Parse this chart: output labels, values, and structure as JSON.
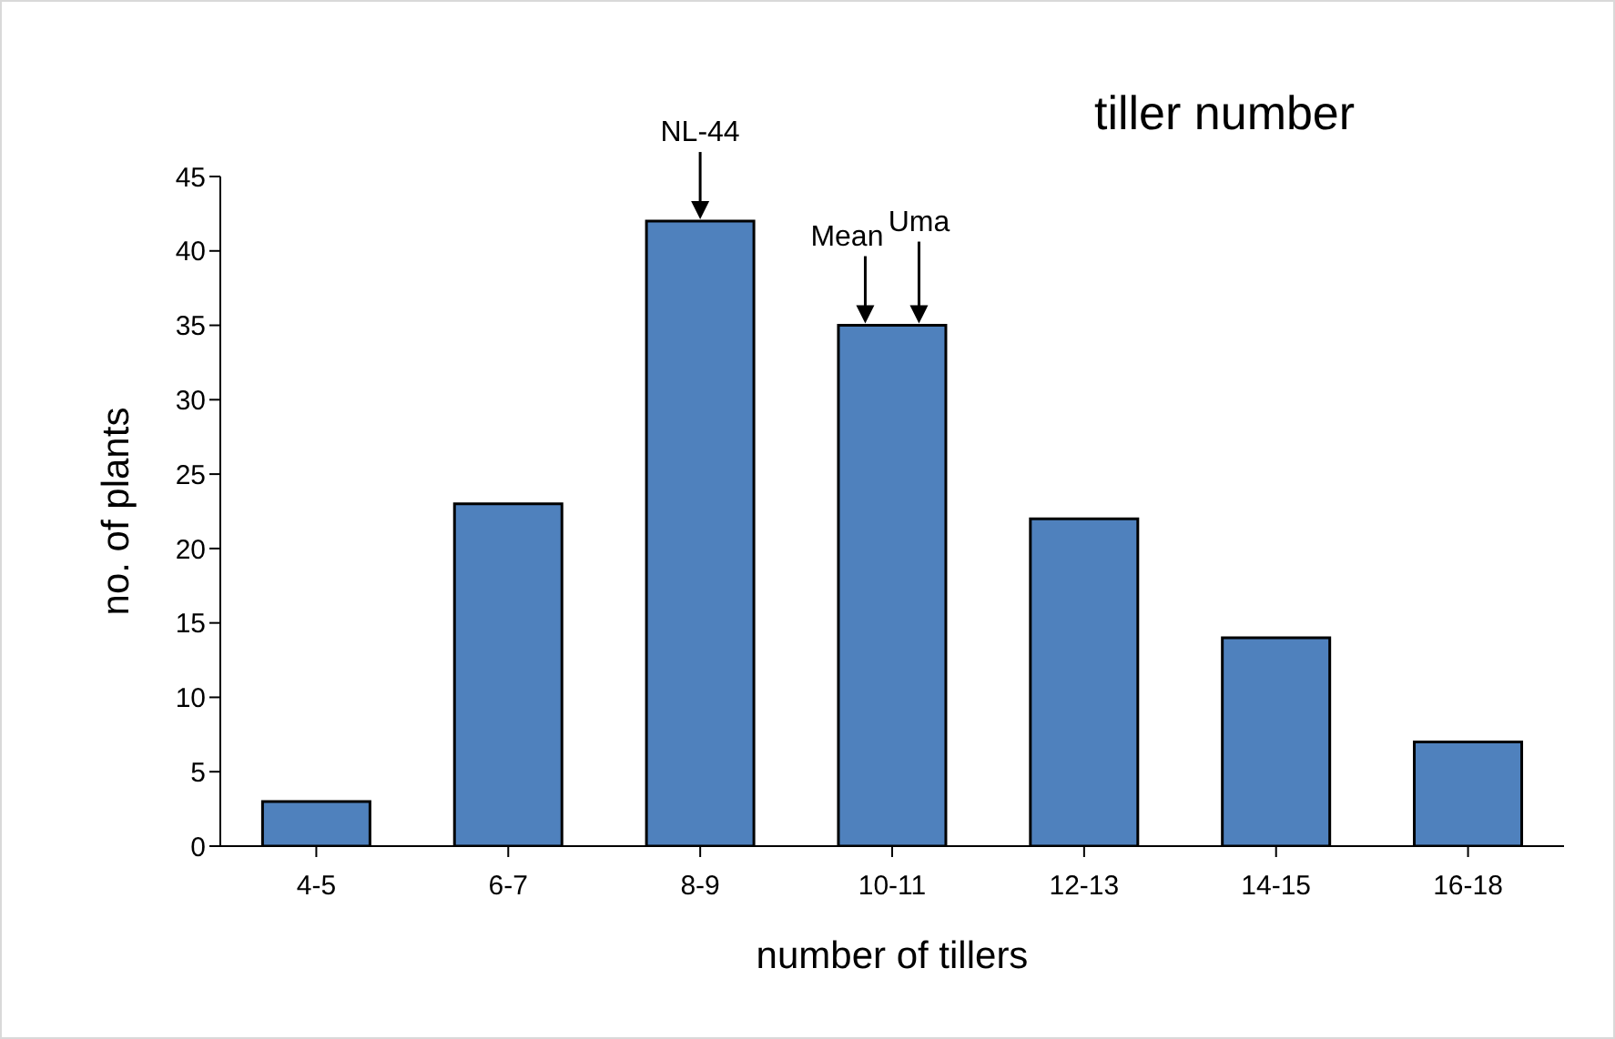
{
  "chart_data": {
    "type": "bar",
    "title": "tiller number",
    "xlabel": "number of tillers",
    "ylabel": "no. of plants",
    "categories": [
      "4-5",
      "6-7",
      "8-9",
      "10-11",
      "12-13",
      "14-15",
      "16-18"
    ],
    "values": [
      3,
      23,
      42,
      35,
      22,
      14,
      7
    ],
    "color": "#4f81bd",
    "ylim": [
      0,
      45
    ],
    "yticks": [
      0,
      5,
      10,
      15,
      20,
      25,
      30,
      35,
      40,
      45
    ],
    "grid": false,
    "annotations": [
      {
        "text": "NL-44",
        "x": "8-9",
        "y": 42
      },
      {
        "text": "Mean",
        "x": "10-11",
        "y": 35
      },
      {
        "text": "Uma",
        "x": "10-11",
        "y": 35
      }
    ]
  }
}
